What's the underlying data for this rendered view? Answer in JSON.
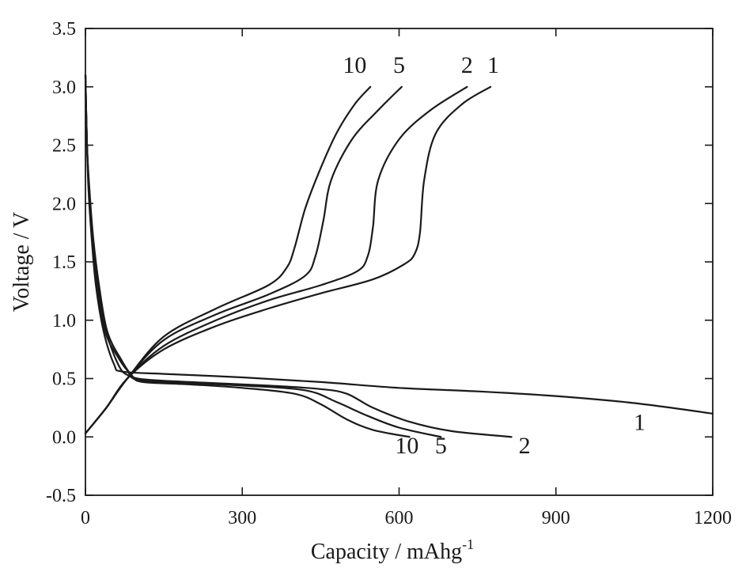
{
  "chart_data": {
    "type": "line",
    "xlabel": "Capacity / mAhg",
    "xlabel_superscript": "-1",
    "ylabel": "Voltage / V",
    "xlim": [
      0,
      1200
    ],
    "ylim": [
      -0.5,
      3.5
    ],
    "x_ticks": [
      0,
      300,
      600,
      900,
      1200
    ],
    "x_tick_labels": [
      "0",
      "300",
      "600",
      "900",
      "1200"
    ],
    "y_ticks": [
      -0.5,
      0.0,
      0.5,
      1.0,
      1.5,
      2.0,
      2.5,
      3.0,
      3.5
    ],
    "y_tick_labels": [
      "-0.5",
      "0.0",
      "0.5",
      "1.0",
      "1.5",
      "2.0",
      "2.5",
      "3.0",
      "3.5"
    ],
    "grid": false,
    "legend": "none",
    "line_color": "#1a1a1a",
    "series": [
      {
        "name": "1",
        "discharge": [
          [
            0,
            3.1
          ],
          [
            3,
            2.5
          ],
          [
            6,
            2.1
          ],
          [
            12,
            1.7
          ],
          [
            20,
            1.3
          ],
          [
            35,
            0.9
          ],
          [
            55,
            0.62
          ],
          [
            70,
            0.56
          ],
          [
            150,
            0.54
          ],
          [
            300,
            0.51
          ],
          [
            450,
            0.47
          ],
          [
            600,
            0.42
          ],
          [
            750,
            0.39
          ],
          [
            900,
            0.35
          ],
          [
            1050,
            0.29
          ],
          [
            1200,
            0.2
          ]
        ],
        "charge": [
          [
            0,
            0.03
          ],
          [
            40,
            0.25
          ],
          [
            80,
            0.5
          ],
          [
            150,
            0.75
          ],
          [
            250,
            0.95
          ],
          [
            350,
            1.1
          ],
          [
            450,
            1.23
          ],
          [
            550,
            1.35
          ],
          [
            610,
            1.48
          ],
          [
            630,
            1.57
          ],
          [
            640,
            1.75
          ],
          [
            648,
            2.2
          ],
          [
            670,
            2.6
          ],
          [
            720,
            2.85
          ],
          [
            775,
            3.0
          ]
        ]
      },
      {
        "name": "2",
        "discharge": [
          [
            0,
            3.1
          ],
          [
            3,
            2.5
          ],
          [
            7,
            2.1
          ],
          [
            13,
            1.7
          ],
          [
            22,
            1.3
          ],
          [
            38,
            0.9
          ],
          [
            60,
            0.7
          ],
          [
            80,
            0.57
          ],
          [
            100,
            0.5
          ],
          [
            200,
            0.47
          ],
          [
            350,
            0.44
          ],
          [
            450,
            0.41
          ],
          [
            500,
            0.37
          ],
          [
            550,
            0.25
          ],
          [
            620,
            0.13
          ],
          [
            700,
            0.05
          ],
          [
            815,
            0.0
          ]
        ],
        "charge": [
          [
            0,
            0.03
          ],
          [
            40,
            0.25
          ],
          [
            80,
            0.5
          ],
          [
            150,
            0.78
          ],
          [
            250,
            1.0
          ],
          [
            350,
            1.17
          ],
          [
            450,
            1.3
          ],
          [
            520,
            1.42
          ],
          [
            540,
            1.55
          ],
          [
            550,
            1.8
          ],
          [
            560,
            2.2
          ],
          [
            600,
            2.55
          ],
          [
            660,
            2.8
          ],
          [
            730,
            3.0
          ]
        ]
      },
      {
        "name": "5",
        "discharge": [
          [
            0,
            3.1
          ],
          [
            3,
            2.5
          ],
          [
            7,
            2.1
          ],
          [
            14,
            1.7
          ],
          [
            24,
            1.3
          ],
          [
            40,
            0.9
          ],
          [
            65,
            0.6
          ],
          [
            85,
            0.52
          ],
          [
            110,
            0.48
          ],
          [
            200,
            0.46
          ],
          [
            300,
            0.44
          ],
          [
            420,
            0.4
          ],
          [
            480,
            0.3
          ],
          [
            540,
            0.18
          ],
          [
            600,
            0.08
          ],
          [
            680,
            0.0
          ]
        ],
        "charge": [
          [
            0,
            0.03
          ],
          [
            40,
            0.25
          ],
          [
            80,
            0.5
          ],
          [
            150,
            0.83
          ],
          [
            250,
            1.05
          ],
          [
            350,
            1.22
          ],
          [
            420,
            1.38
          ],
          [
            440,
            1.55
          ],
          [
            455,
            1.85
          ],
          [
            470,
            2.2
          ],
          [
            510,
            2.55
          ],
          [
            560,
            2.8
          ],
          [
            605,
            3.0
          ]
        ]
      },
      {
        "name": "10",
        "discharge": [
          [
            0,
            3.1
          ],
          [
            3,
            2.5
          ],
          [
            8,
            2.1
          ],
          [
            15,
            1.7
          ],
          [
            26,
            1.3
          ],
          [
            42,
            0.9
          ],
          [
            70,
            0.65
          ],
          [
            90,
            0.52
          ],
          [
            110,
            0.47
          ],
          [
            200,
            0.45
          ],
          [
            300,
            0.42
          ],
          [
            400,
            0.37
          ],
          [
            450,
            0.28
          ],
          [
            500,
            0.15
          ],
          [
            550,
            0.06
          ],
          [
            620,
            0.0
          ]
        ],
        "charge": [
          [
            0,
            0.03
          ],
          [
            40,
            0.25
          ],
          [
            80,
            0.5
          ],
          [
            150,
            0.86
          ],
          [
            250,
            1.1
          ],
          [
            350,
            1.3
          ],
          [
            385,
            1.45
          ],
          [
            400,
            1.62
          ],
          [
            420,
            1.95
          ],
          [
            445,
            2.25
          ],
          [
            480,
            2.6
          ],
          [
            515,
            2.85
          ],
          [
            545,
            3.0
          ]
        ]
      }
    ],
    "annotations": [
      {
        "text": "10",
        "x": 515,
        "y": 3.12
      },
      {
        "text": "5",
        "x": 600,
        "y": 3.12
      },
      {
        "text": "2",
        "x": 730,
        "y": 3.12
      },
      {
        "text": "1",
        "x": 780,
        "y": 3.12
      },
      {
        "text": "1",
        "x": 1060,
        "y": 0.06
      },
      {
        "text": "2",
        "x": 840,
        "y": -0.14
      },
      {
        "text": "5",
        "x": 680,
        "y": -0.14
      },
      {
        "text": "10",
        "x": 615,
        "y": -0.14
      }
    ]
  }
}
